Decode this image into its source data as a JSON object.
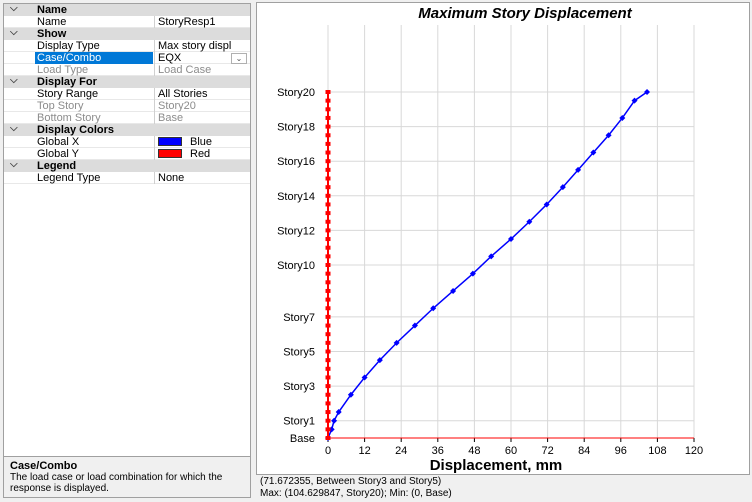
{
  "panel": {
    "rows": [
      {
        "kind": "cat",
        "label": "Name"
      },
      {
        "kind": "prop",
        "label": "Name",
        "value": "StoryResp1"
      },
      {
        "kind": "cat",
        "label": "Show"
      },
      {
        "kind": "prop",
        "label": "Display Type",
        "value": "Max story displ"
      },
      {
        "kind": "prop",
        "label": "Case/Combo",
        "value": "EQX",
        "selected": true,
        "dropdown": true
      },
      {
        "kind": "prop",
        "label": "Load Type",
        "value": "Load Case",
        "disabled": true
      },
      {
        "kind": "cat",
        "label": "Display For"
      },
      {
        "kind": "prop",
        "label": "Story Range",
        "value": "All Stories"
      },
      {
        "kind": "prop",
        "label": "Top Story",
        "value": "Story20",
        "disabled": true
      },
      {
        "kind": "prop",
        "label": "Bottom Story",
        "value": "Base",
        "disabled": true
      },
      {
        "kind": "cat",
        "label": "Display Colors"
      },
      {
        "kind": "prop",
        "label": "Global X",
        "value": "Blue",
        "swatch": "#0000ff"
      },
      {
        "kind": "prop",
        "label": "Global Y",
        "value": "Red",
        "swatch": "#ff0000"
      },
      {
        "kind": "cat",
        "label": "Legend"
      },
      {
        "kind": "prop",
        "label": "Legend Type",
        "value": "None"
      }
    ],
    "chevron_icon": "chevron-down-icon",
    "dropdown_icon": "dropdown-arrow-icon"
  },
  "description": {
    "title": "Case/Combo",
    "text": "The load case or load combination for which the response is displayed."
  },
  "status": {
    "line1": "(71.672355, Between Story3 and Story5)",
    "line2": "Max: (104.629847, Story20);   Min: (0, Base)"
  },
  "colors": {
    "global_x": "#0000ff",
    "global_y": "#ff0000",
    "selection": "#0078d7"
  },
  "chart_data": {
    "type": "line",
    "title": "Maximum Story Displacement",
    "xlabel": "Displacement, mm",
    "ylabel": "",
    "xlim": [
      0,
      120
    ],
    "x_ticks": [
      0,
      12,
      24,
      36,
      48,
      60,
      72,
      84,
      96,
      108,
      120
    ],
    "y_ticks": [
      {
        "label": "Base",
        "level": 0
      },
      {
        "label": "Story1",
        "level": 1
      },
      {
        "label": "Story3",
        "level": 3
      },
      {
        "label": "Story5",
        "level": 5
      },
      {
        "label": "Story7",
        "level": 7
      },
      {
        "label": "Story10",
        "level": 10
      },
      {
        "label": "Story12",
        "level": 12
      },
      {
        "label": "Story14",
        "level": 14
      },
      {
        "label": "Story16",
        "level": 16
      },
      {
        "label": "Story18",
        "level": 18
      },
      {
        "label": "Story20",
        "level": 20
      }
    ],
    "grid": true,
    "series": [
      {
        "axis": "Global X",
        "color": "#0000ff",
        "points": [
          [
            0,
            0
          ],
          [
            1.2,
            0.5
          ],
          [
            2,
            1
          ],
          [
            3.5,
            1.5
          ],
          [
            7.5,
            2.5
          ],
          [
            12,
            3.5
          ],
          [
            17,
            4.5
          ],
          [
            22.5,
            5.5
          ],
          [
            28.5,
            6.5
          ],
          [
            34.5,
            7.5
          ],
          [
            41,
            8.5
          ],
          [
            47.5,
            9.5
          ],
          [
            53.5,
            10.5
          ],
          [
            60,
            11.5
          ],
          [
            66,
            12.5
          ],
          [
            71.7,
            13.5
          ],
          [
            77,
            14.5
          ],
          [
            82,
            15.5
          ],
          [
            87,
            16.5
          ],
          [
            92,
            17.5
          ],
          [
            96.5,
            18.5
          ],
          [
            100.5,
            19.5
          ],
          [
            104.6,
            20
          ]
        ]
      },
      {
        "axis": "Global Y",
        "color": "#ff0000",
        "points": [
          [
            0,
            0
          ],
          [
            0,
            0.5
          ],
          [
            0,
            1
          ],
          [
            0,
            1.5
          ],
          [
            0,
            2
          ],
          [
            0,
            2.5
          ],
          [
            0,
            3
          ],
          [
            0,
            3.5
          ],
          [
            0,
            4
          ],
          [
            0,
            4.5
          ],
          [
            0,
            5
          ],
          [
            0,
            5.5
          ],
          [
            0,
            6
          ],
          [
            0,
            6.5
          ],
          [
            0,
            7
          ],
          [
            0,
            7.5
          ],
          [
            0,
            8
          ],
          [
            0,
            8.5
          ],
          [
            0,
            9
          ],
          [
            0,
            9.5
          ],
          [
            0,
            10
          ],
          [
            0,
            10.5
          ],
          [
            0,
            11
          ],
          [
            0,
            11.5
          ],
          [
            0,
            12
          ],
          [
            0,
            12.5
          ],
          [
            0,
            13
          ],
          [
            0,
            13.5
          ],
          [
            0,
            14
          ],
          [
            0,
            14.5
          ],
          [
            0,
            15
          ],
          [
            0,
            15.5
          ],
          [
            0,
            16
          ],
          [
            0,
            16.5
          ],
          [
            0,
            17
          ],
          [
            0,
            17.5
          ],
          [
            0,
            18
          ],
          [
            0,
            18.5
          ],
          [
            0,
            19
          ],
          [
            0,
            19.5
          ],
          [
            0,
            20
          ]
        ]
      }
    ]
  }
}
